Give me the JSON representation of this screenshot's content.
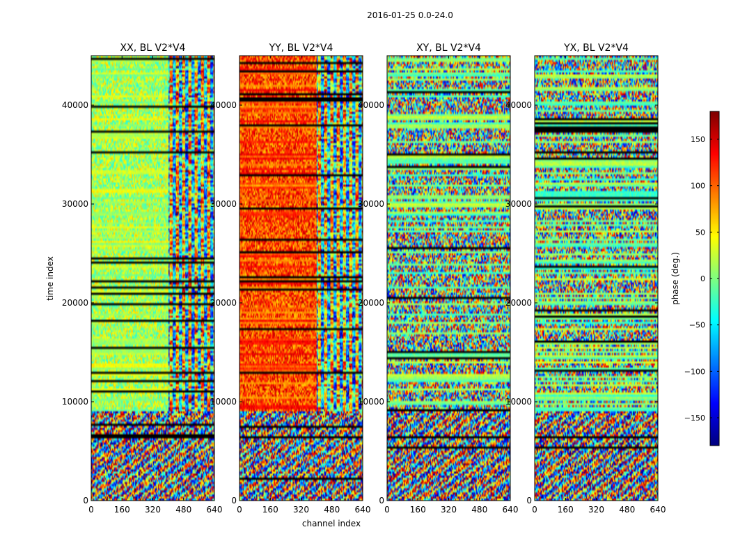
{
  "chart_data": {
    "type": "heatmap",
    "suptitle": "2016-01-25 0.0-24.0",
    "xlabel": "channel index",
    "ylabel": "time index",
    "xlim": [
      0,
      640
    ],
    "ylim": [
      0,
      45000
    ],
    "x_ticks": [
      0,
      160,
      320,
      480,
      640
    ],
    "y_ticks": [
      0,
      10000,
      20000,
      30000,
      40000
    ],
    "panels": [
      {
        "title": "XX, BL V2*V4",
        "pol": "XX",
        "base_phase": 15,
        "noise_start_channel": 400
      },
      {
        "title": "YY, BL V2*V4",
        "pol": "YY",
        "base_phase": 110,
        "noise_start_channel": 400
      },
      {
        "title": "XY, BL V2*V4",
        "pol": "XY",
        "base_phase": 0,
        "noise_start_channel": 0
      },
      {
        "title": "YX, BL V2*V4",
        "pol": "YX",
        "base_phase": 0,
        "noise_start_channel": 0
      }
    ],
    "colorbar": {
      "label": "phase (deg.)",
      "range": [
        -180,
        180
      ],
      "ticks": [
        -150,
        -100,
        -50,
        0,
        50,
        100,
        150
      ],
      "tick_labels": [
        "−150",
        "−100",
        "−50",
        "0",
        "50",
        "100",
        "150"
      ],
      "colormap": "jet"
    }
  }
}
